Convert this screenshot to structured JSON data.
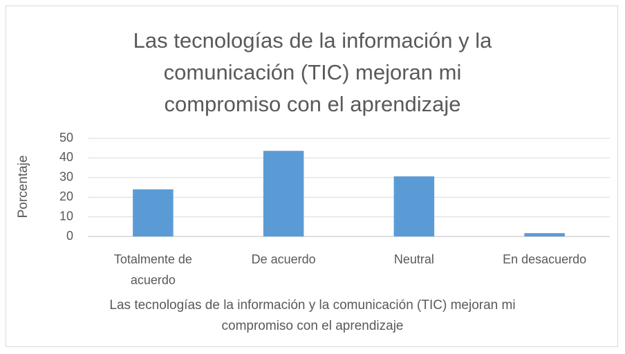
{
  "chart_data": {
    "type": "bar",
    "title": "Las tecnologías de la información y la comunicación (TIC) mejoran mi compromiso con el aprendizaje",
    "x_label": "Las tecnologías de la información y la comunicación (TIC) mejoran mi compromiso con el aprendizaje",
    "y_label": "Porcentaje",
    "categories": [
      "Totalmente de acuerdo",
      "De acuerdo",
      "Neutral",
      "En desacuerdo"
    ],
    "values": [
      24,
      43.6,
      30.6,
      1.7
    ],
    "color": "#5b9bd5",
    "ylim": [
      0,
      50
    ],
    "yticks": [
      0,
      10,
      20,
      30,
      40,
      50
    ],
    "grid": true
  }
}
